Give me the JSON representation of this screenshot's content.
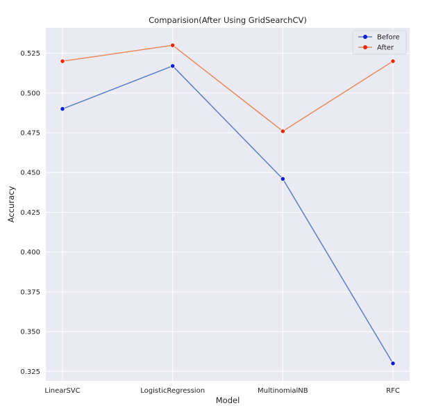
{
  "chart_data": {
    "type": "line",
    "title": "Comparision(After Using GridSearchCV)",
    "xlabel": "Model",
    "ylabel": "Accuracy",
    "categories": [
      "LinearSVC",
      "LogisticRegression",
      "MultinomialNB",
      "RFC"
    ],
    "ylim": [
      0.319,
      0.541
    ],
    "yticks": [
      0.325,
      0.35,
      0.375,
      0.4,
      0.425,
      0.45,
      0.475,
      0.5,
      0.525
    ],
    "ytick_labels": [
      "0.325",
      "0.350",
      "0.375",
      "0.400",
      "0.425",
      "0.450",
      "0.475",
      "0.500",
      "0.525"
    ],
    "grid": true,
    "legend_position": "top-right",
    "series": [
      {
        "name": "Before",
        "values": [
          0.49,
          0.517,
          0.446,
          0.33
        ],
        "line_color": "#5a7fc6",
        "marker_color": "#0a1fd6"
      },
      {
        "name": "After",
        "values": [
          0.52,
          0.53,
          0.476,
          0.52
        ],
        "line_color": "#e88a5c",
        "marker_color": "#e82a0a"
      }
    ],
    "background": "#eaeaf2",
    "grid_color": "#ffffff"
  }
}
